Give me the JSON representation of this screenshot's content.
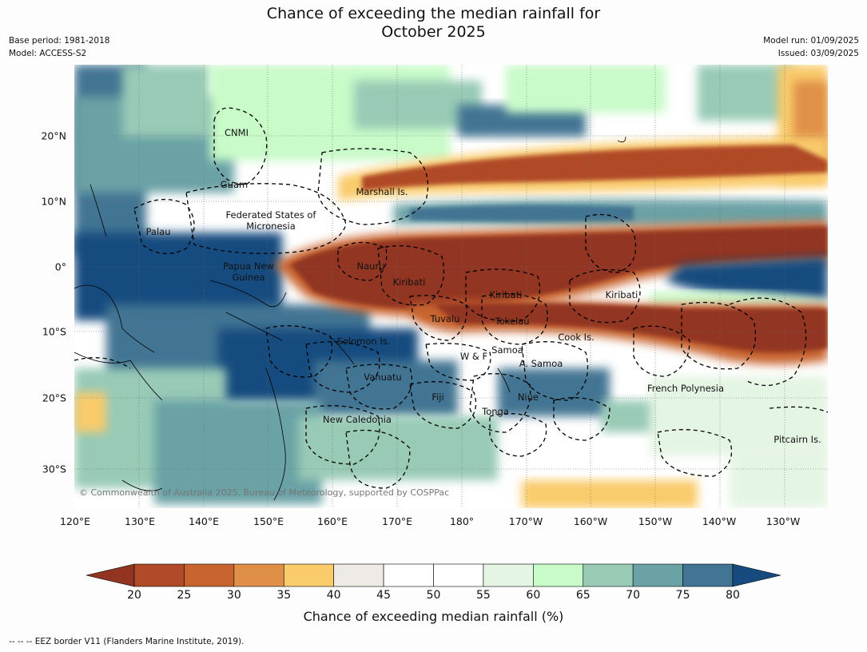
{
  "title_line1": "Chance of exceeding the median rainfall for",
  "title_line2": "October 2025",
  "meta_left": {
    "base_period": "Base period: 1981-2018",
    "model": "Model: ACCESS-S2"
  },
  "meta_right": {
    "model_run": "Model run: 01/09/2025",
    "issued": "Issued: 03/09/2025"
  },
  "lat_labels": [
    "20°N",
    "10°N",
    "0°",
    "10°S",
    "20°S",
    "30°S"
  ],
  "lon_labels": [
    "120°E",
    "130°E",
    "140°E",
    "150°E",
    "160°E",
    "170°E",
    "180°",
    "170°W",
    "160°W",
    "150°W",
    "140°W",
    "130°W"
  ],
  "places": [
    {
      "name": "CNMI"
    },
    {
      "name": "Guam"
    },
    {
      "name": "Marshall Is."
    },
    {
      "name": "Federated States of Micronesia"
    },
    {
      "name": "Palau"
    },
    {
      "name": "Papua New Guinea"
    },
    {
      "name": "Nauru"
    },
    {
      "name": "Kiribati"
    },
    {
      "name": "Kiribati"
    },
    {
      "name": "Kiribati"
    },
    {
      "name": "Tuvalu"
    },
    {
      "name": "Tokelau"
    },
    {
      "name": "Cook Is."
    },
    {
      "name": "Solomon Is."
    },
    {
      "name": "Samoa"
    },
    {
      "name": "W & F"
    },
    {
      "name": "A. Samoa"
    },
    {
      "name": "Vanuatu"
    },
    {
      "name": "Fiji"
    },
    {
      "name": "Niue"
    },
    {
      "name": "French Polynesia"
    },
    {
      "name": "Tonga"
    },
    {
      "name": "New Caledonia"
    },
    {
      "name": "Pitcairn Is."
    }
  ],
  "copyright": "© Commonwealth of Australia 2025, Bureau of Meteorology, supported by COSPPac",
  "colorbar": {
    "ticks": [
      "20",
      "25",
      "30",
      "35",
      "40",
      "45",
      "50",
      "55",
      "60",
      "65",
      "70",
      "75",
      "80"
    ],
    "colors": [
      "#b04a28",
      "#c8642f",
      "#e09046",
      "#f9cb6a",
      "#eeebe6",
      "#ffffff",
      "#ffffff",
      "#e5f5e3",
      "#c8fbc8",
      "#98cab6",
      "#6ba2a6",
      "#427493"
    ],
    "under_color": "#923421",
    "over_color": "#174b7f",
    "label": "Chance of exceeding median rainfall (%)"
  },
  "footnote": "--  --  -- EEZ border V11 (Flanders Marine Institute, 2019)."
}
